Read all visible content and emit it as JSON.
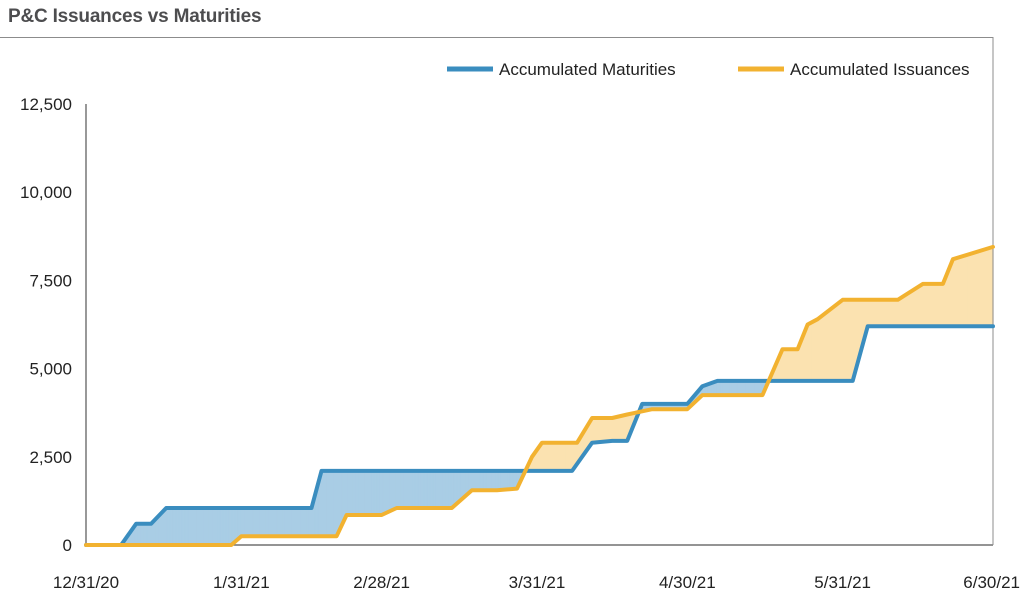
{
  "title": "P&C Issuances vs Maturities",
  "chart_data": {
    "type": "line",
    "title": "P&C Issuances vs Maturities",
    "xlabel": "",
    "ylabel": "",
    "x_range": [
      "2020-12-31",
      "2021-06-30"
    ],
    "ylim": [
      0,
      12500
    ],
    "y_ticks": [
      0,
      2500,
      5000,
      7500,
      10000,
      12500
    ],
    "y_tick_labels": [
      "0",
      "2,500",
      "5,000",
      "7,500",
      "10,000",
      "12,500"
    ],
    "x_ticks": [
      "2020-12-31",
      "2021-01-31",
      "2021-02-28",
      "2021-03-31",
      "2021-04-30",
      "2021-05-31",
      "2021-06-30"
    ],
    "x_tick_labels": [
      "12/31/20",
      "1/31/21",
      "2/28/21",
      "3/31/21",
      "4/30/21",
      "5/31/21",
      "6/30/21"
    ],
    "legend_position": "top-right",
    "grid": false,
    "fill_between": true,
    "series": [
      {
        "name": "Accumulated Maturities",
        "color": "#3a8dbf",
        "fill_color": "#a9cde5",
        "x": [
          "2020-12-31",
          "2021-01-07",
          "2021-01-10",
          "2021-01-13",
          "2021-01-16",
          "2021-01-19",
          "2021-01-31",
          "2021-02-14",
          "2021-02-16",
          "2021-02-17",
          "2021-02-20",
          "2021-02-28",
          "2021-03-15",
          "2021-03-31",
          "2021-04-07",
          "2021-04-11",
          "2021-04-15",
          "2021-04-18",
          "2021-04-21",
          "2021-04-25",
          "2021-04-30",
          "2021-05-03",
          "2021-05-06",
          "2021-05-31",
          "2021-06-02",
          "2021-06-05",
          "2021-06-30"
        ],
        "y": [
          0,
          0,
          600,
          600,
          1050,
          1050,
          1050,
          1050,
          2100,
          2100,
          2100,
          2100,
          2100,
          2100,
          2100,
          2900,
          2950,
          2950,
          4000,
          4000,
          4000,
          4500,
          4650,
          4650,
          4650,
          6200,
          6200
        ]
      },
      {
        "name": "Accumulated Issuances",
        "color": "#f2b230",
        "fill_color": "#fbe2b0",
        "x": [
          "2020-12-31",
          "2021-01-14",
          "2021-01-29",
          "2021-01-31",
          "2021-02-05",
          "2021-02-16",
          "2021-02-19",
          "2021-02-21",
          "2021-02-25",
          "2021-02-28",
          "2021-03-03",
          "2021-03-10",
          "2021-03-14",
          "2021-03-18",
          "2021-03-23",
          "2021-03-27",
          "2021-03-30",
          "2021-04-01",
          "2021-04-04",
          "2021-04-08",
          "2021-04-11",
          "2021-04-15",
          "2021-04-18",
          "2021-04-23",
          "2021-04-30",
          "2021-05-03",
          "2021-05-12",
          "2021-05-15",
          "2021-05-19",
          "2021-05-22",
          "2021-05-24",
          "2021-05-26",
          "2021-05-31",
          "2021-06-09",
          "2021-06-11",
          "2021-06-16",
          "2021-06-20",
          "2021-06-22",
          "2021-06-30"
        ],
        "y": [
          0,
          0,
          0,
          250,
          250,
          250,
          250,
          850,
          850,
          850,
          1050,
          1050,
          1050,
          1550,
          1550,
          1600,
          2500,
          2900,
          2900,
          2900,
          3600,
          3600,
          3700,
          3850,
          3850,
          4250,
          4250,
          4250,
          5550,
          5550,
          6250,
          6400,
          6950,
          6950,
          6950,
          7400,
          7400,
          8100,
          8450
        ]
      }
    ]
  }
}
